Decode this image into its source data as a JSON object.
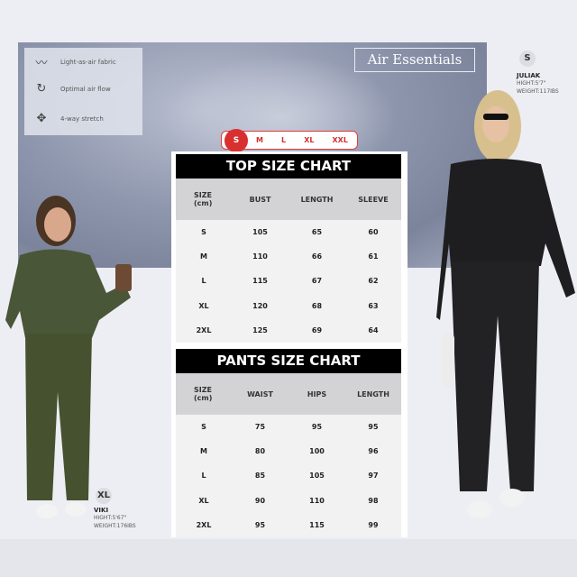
{
  "features": [
    {
      "icon": "feather-icon",
      "label": "Light-as-air fabric"
    },
    {
      "icon": "airflow-icon",
      "label": "Optimal air flow"
    },
    {
      "icon": "stretch-icon",
      "label": "4-way stretch"
    }
  ],
  "brand": "Air Essentials",
  "sizes": [
    "S",
    "M",
    "L",
    "XL",
    "XXL"
  ],
  "selected_size": "S",
  "accent": "#d8302f",
  "top_chart": {
    "title": "TOP SIZE CHART",
    "headers": [
      "SIZE (cm)",
      "BUST",
      "LENGTH",
      "SLEEVE"
    ],
    "rows": [
      [
        "S",
        "105",
        "65",
        "60"
      ],
      [
        "M",
        "110",
        "66",
        "61"
      ],
      [
        "L",
        "115",
        "67",
        "62"
      ],
      [
        "XL",
        "120",
        "68",
        "63"
      ],
      [
        "2XL",
        "125",
        "69",
        "64"
      ]
    ]
  },
  "pants_chart": {
    "title": "PANTS SIZE CHART",
    "headers": [
      "SIZE (cm)",
      "WAIST",
      "HIPS",
      "LENGTH"
    ],
    "rows": [
      [
        "S",
        "75",
        "95",
        "95"
      ],
      [
        "M",
        "80",
        "100",
        "96"
      ],
      [
        "L",
        "85",
        "105",
        "97"
      ],
      [
        "XL",
        "90",
        "110",
        "98"
      ],
      [
        "2XL",
        "95",
        "115",
        "99"
      ]
    ]
  },
  "model_right": {
    "size": "S",
    "name": "JULIAK",
    "height": "HIGHT:5'7\"",
    "weight": "WEIGHT:117IBS",
    "outfit_color": "#1e1e20"
  },
  "model_left": {
    "size": "XL",
    "name": "VIKI",
    "height": "HIGHT:5'67\"",
    "weight": "WEIGHT:176IBS",
    "outfit_color": "#4a5638"
  }
}
